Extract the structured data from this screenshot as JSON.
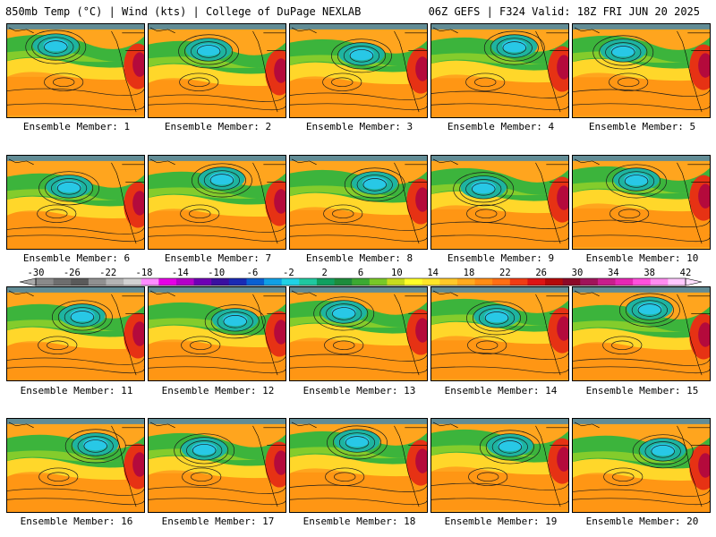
{
  "header": {
    "left": "850mb Temp (°C) | Wind (kts) | College of DuPage NEXLAB",
    "right": "06Z GEFS | F324 Valid: 18Z FRI JUN 20 2025"
  },
  "members": [
    "Ensemble Member: 1",
    "Ensemble Member: 2",
    "Ensemble Member: 3",
    "Ensemble Member: 4",
    "Ensemble Member: 5",
    "Ensemble Member: 6",
    "Ensemble Member: 7",
    "Ensemble Member: 8",
    "Ensemble Member: 9",
    "Ensemble Member: 10",
    "Ensemble Member: 11",
    "Ensemble Member: 12",
    "Ensemble Member: 13",
    "Ensemble Member: 14",
    "Ensemble Member: 15",
    "Ensemble Member: 16",
    "Ensemble Member: 17",
    "Ensemble Member: 18",
    "Ensemble Member: 19",
    "Ensemble Member: 20"
  ],
  "colorbar": {
    "labels": [
      "-30",
      "-26",
      "-22",
      "-18",
      "-14",
      "-10",
      "-6",
      "-2",
      "2",
      "6",
      "10",
      "14",
      "18",
      "22",
      "26",
      "30",
      "34",
      "38",
      "42"
    ],
    "colors": [
      "#8a8a8a",
      "#6e6e6e",
      "#5a5a5a",
      "#909090",
      "#b4b4b4",
      "#d2d2d2",
      "#ff8cff",
      "#e600e6",
      "#b400c8",
      "#6e00b4",
      "#3a10a0",
      "#1a2ab4",
      "#0a60d2",
      "#10a0e6",
      "#20d2e6",
      "#20c8a0",
      "#10a060",
      "#1e8c3c",
      "#3caa32",
      "#78c828",
      "#c8dc1e",
      "#ffff28",
      "#ffe628",
      "#ffc828",
      "#ffaa1e",
      "#ff8c14",
      "#ff6e14",
      "#f03c14",
      "#dc1414",
      "#b40a0a",
      "#8c0a28",
      "#a0145a",
      "#c81e8c",
      "#e628b4",
      "#ff50dc",
      "#ff8cf0",
      "#ffc8ff"
    ]
  }
}
